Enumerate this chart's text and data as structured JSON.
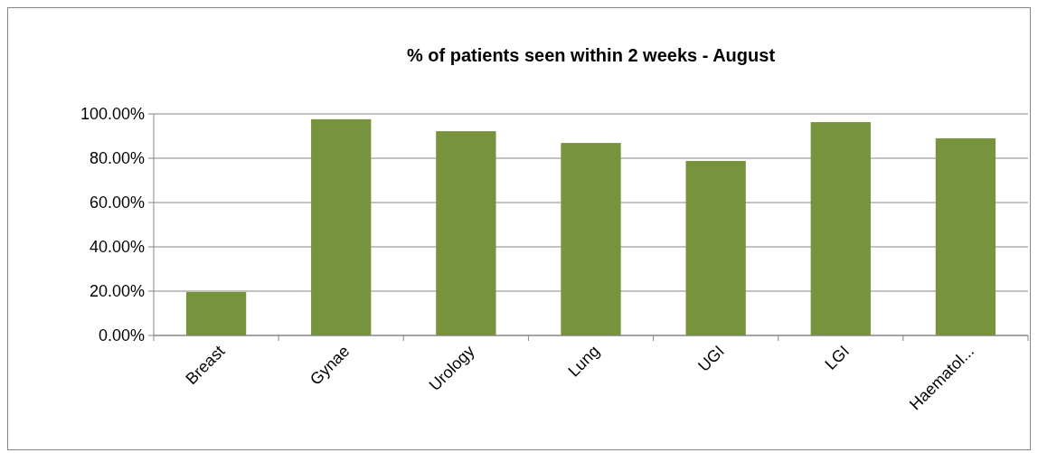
{
  "chart_data": {
    "type": "bar",
    "title": "% of patients seen within 2 weeks - August",
    "categories": [
      "Breast",
      "Gynae",
      "Urology",
      "Lung",
      "UGI",
      "LGI",
      "Haematol..."
    ],
    "values": [
      19.6,
      97.6,
      92.2,
      86.9,
      78.8,
      96.3,
      89.0
    ],
    "color": "#77933c",
    "ylim": [
      0,
      100
    ],
    "yticks": [
      {
        "value": 0,
        "label": "0.00%"
      },
      {
        "value": 20,
        "label": "20.00%"
      },
      {
        "value": 40,
        "label": "40.00%"
      },
      {
        "value": 60,
        "label": "60.00%"
      },
      {
        "value": 80,
        "label": "80.00%"
      },
      {
        "value": 100,
        "label": "100.00%"
      }
    ],
    "grid": "y"
  }
}
